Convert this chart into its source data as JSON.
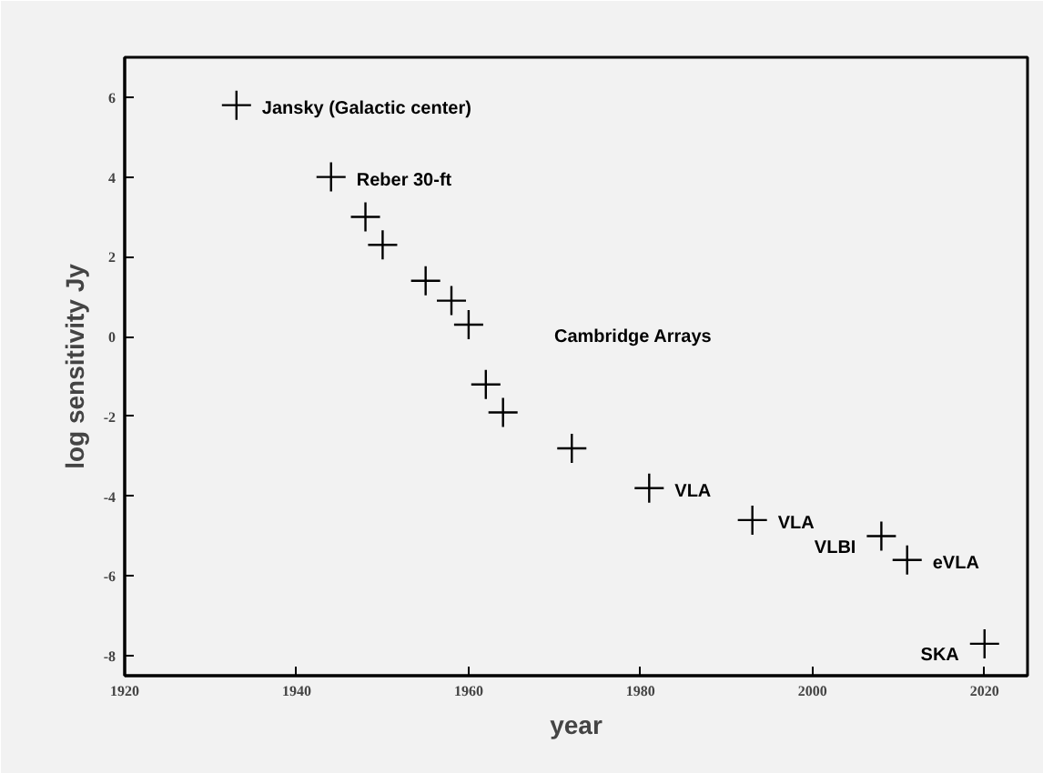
{
  "chart_data": {
    "type": "scatter",
    "xlabel": "year",
    "ylabel": "log sensitivity Jy",
    "x": [
      1933,
      1944,
      1948,
      1950,
      1955,
      1958,
      1960,
      1962,
      1964,
      1972,
      1981,
      1993,
      2008,
      2011,
      2020
    ],
    "series": [
      {
        "color": "#000000",
        "values": [
          5.8,
          4.0,
          3.0,
          2.3,
          1.4,
          0.9,
          0.3,
          -1.2,
          -1.9,
          -2.8,
          -3.8,
          -4.6,
          -5.0,
          -5.6,
          -7.7
        ]
      }
    ],
    "xlim": [
      1920,
      2025
    ],
    "ylim": [
      -8.5,
      7
    ],
    "xticks": [
      1920,
      1940,
      1960,
      1980,
      2000,
      2020
    ],
    "yticks": [
      -8,
      -6,
      -4,
      -2,
      0,
      2,
      4,
      6
    ],
    "grid": false,
    "marker": "cross",
    "annotations": [
      {
        "text": "Jansky (Galactic center)",
        "x": 1933,
        "y": 5.8
      },
      {
        "text": "Reber 30-ft",
        "x": 1944,
        "y": 4.0
      },
      "Cambridge Arrays",
      {
        "text": "VLA",
        "x": 1981,
        "y": -3.8
      },
      {
        "text": "VLA",
        "x": 1993,
        "y": -4.6
      },
      {
        "text": "VLBI",
        "x": 2008,
        "y": -5.0
      },
      {
        "text": "eVLA",
        "x": 2011,
        "y": -5.6
      },
      {
        "text": "SKA",
        "x": 2020,
        "y": -7.7
      }
    ]
  }
}
